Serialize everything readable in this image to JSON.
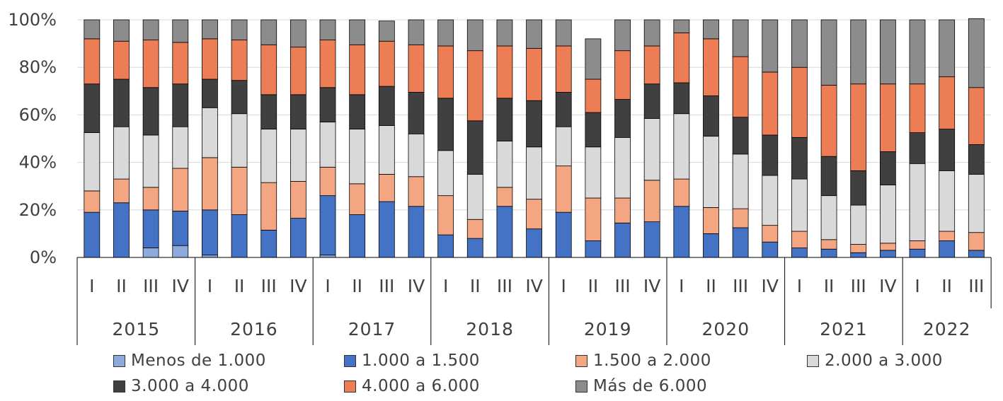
{
  "chart_data": {
    "type": "stacked-bar-100",
    "title": "",
    "xlabel": "",
    "ylabel": "",
    "ylim": [
      0,
      100
    ],
    "y_ticks": [
      "0%",
      "20%",
      "40%",
      "60%",
      "80%",
      "100%"
    ],
    "grid": true,
    "legend_position": "bottom",
    "years": [
      {
        "label": "2015",
        "quarters": [
          "I",
          "II",
          "III",
          "IV"
        ]
      },
      {
        "label": "2016",
        "quarters": [
          "I",
          "II",
          "III",
          "IV"
        ]
      },
      {
        "label": "2017",
        "quarters": [
          "I",
          "II",
          "III",
          "IV"
        ]
      },
      {
        "label": "2018",
        "quarters": [
          "I",
          "II",
          "III",
          "IV"
        ]
      },
      {
        "label": "2019",
        "quarters": [
          "I",
          "II",
          "III",
          "IV"
        ]
      },
      {
        "label": "2020",
        "quarters": [
          "I",
          "II",
          "III",
          "IV"
        ]
      },
      {
        "label": "2021",
        "quarters": [
          "I",
          "II",
          "III",
          "IV"
        ]
      },
      {
        "label": "2022",
        "quarters": [
          "I",
          "II",
          "III"
        ]
      }
    ],
    "series": [
      {
        "name": "Menos de 1.000",
        "color": "#8EA9DB",
        "values": [
          0,
          0,
          4,
          5,
          1,
          0,
          0,
          0,
          1,
          0,
          0,
          0,
          0,
          0,
          0,
          0,
          0,
          0,
          0,
          0,
          0,
          0,
          0,
          0,
          0,
          0,
          0,
          0,
          0,
          0,
          0
        ]
      },
      {
        "name": "1.000 a 1.500",
        "color": "#4472C4",
        "values": [
          19,
          23,
          16,
          14.5,
          19,
          18,
          11.5,
          16.5,
          25,
          18,
          23.5,
          21.5,
          9.5,
          8,
          21.5,
          12,
          19,
          7,
          14.5,
          15,
          21.5,
          10,
          12.5,
          6.5,
          4,
          3.5,
          2,
          3,
          3.5,
          7,
          3
        ]
      },
      {
        "name": "1.500 a 2.000",
        "color": "#F4A582",
        "values": [
          9,
          10,
          9.5,
          18,
          22,
          20,
          20,
          15.5,
          12,
          13,
          11.5,
          12.5,
          16.5,
          8,
          8,
          12.5,
          19.5,
          18,
          10.5,
          17.5,
          11.5,
          11,
          8,
          7,
          7,
          4,
          3.5,
          3,
          3.5,
          4,
          7.5
        ]
      },
      {
        "name": "2.000 a 3.000",
        "color": "#D9D9D9",
        "values": [
          24.5,
          22,
          22,
          17.5,
          21,
          22.5,
          22.5,
          22,
          19,
          23,
          20.5,
          18,
          19,
          19,
          19.5,
          22,
          16.5,
          21.5,
          25.5,
          26,
          27.5,
          30,
          23,
          21,
          22,
          18.5,
          16.5,
          24.5,
          32.5,
          25.5,
          24.5
        ]
      },
      {
        "name": "3.000 a 4.000",
        "color": "#404040",
        "values": [
          20.5,
          20,
          20,
          18,
          12,
          14,
          14.5,
          14.5,
          14.5,
          14.5,
          16.5,
          17.5,
          22,
          22.5,
          18,
          19.5,
          14.5,
          14.5,
          16,
          14.5,
          13,
          17,
          15.5,
          17,
          17.5,
          16.5,
          14.5,
          14,
          13,
          17.5,
          12.5
        ]
      },
      {
        "name": "4.000 a 6.000",
        "color": "#ED7D55",
        "values": [
          19,
          16,
          20,
          17.5,
          17,
          17,
          21,
          20,
          20,
          21,
          19,
          20,
          22,
          29.5,
          22,
          22,
          19.5,
          14,
          20.5,
          16,
          21,
          24,
          25.5,
          26.5,
          29.5,
          30,
          36.5,
          28.5,
          20.5,
          22,
          24
        ]
      },
      {
        "name": "Más de 6.000",
        "color": "#8C8C8C",
        "values": [
          8,
          9,
          8.5,
          9.5,
          8,
          8.5,
          10.5,
          11.5,
          8.5,
          10.5,
          8.5,
          10.5,
          11,
          13,
          11,
          12,
          11,
          17,
          13,
          11,
          5.5,
          8,
          15.5,
          22,
          20,
          27.5,
          27,
          27,
          27,
          24,
          29
        ]
      }
    ]
  }
}
